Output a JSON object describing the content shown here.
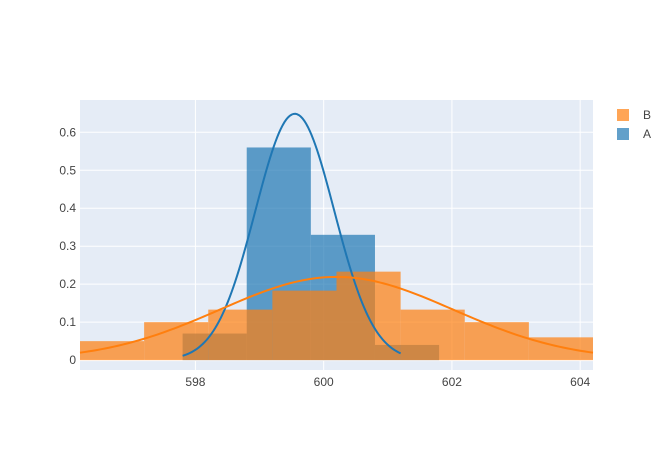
{
  "chart_data": {
    "type": "histogram",
    "title": "",
    "xlabel": "",
    "ylabel": "",
    "xlim": [
      596.2,
      604.2
    ],
    "ylim": [
      -0.026,
      0.685
    ],
    "x_ticks": [
      598,
      600,
      602,
      604
    ],
    "y_ticks": [
      0,
      0.1,
      0.2,
      0.3,
      0.4,
      0.5,
      0.6
    ],
    "x_tick_labels": [
      "598",
      "600",
      "602",
      "604"
    ],
    "y_tick_labels": [
      "0",
      "0.1",
      "0.2",
      "0.3",
      "0.4",
      "0.5",
      "0.6"
    ],
    "grid": true,
    "legend_position": "top-right",
    "background": "#e5ecf6",
    "series": [
      {
        "name": "A",
        "color": "#1f77b4",
        "opacity": 0.7,
        "bins": [
          {
            "x0": 597.8,
            "x1": 598.8,
            "y": 0.07
          },
          {
            "x0": 598.8,
            "x1": 599.8,
            "y": 0.56
          },
          {
            "x0": 599.8,
            "x1": 600.8,
            "y": 0.33
          },
          {
            "x0": 600.8,
            "x1": 601.8,
            "y": 0.04
          }
        ],
        "curve": {
          "type": "normal",
          "mean": 599.55,
          "sd": 0.615,
          "scale": 1.0,
          "x_range": [
            597.8,
            601.2
          ]
        }
      },
      {
        "name": "B",
        "color": "#ff7f0e",
        "opacity": 0.7,
        "bins": [
          {
            "x0": 596.2,
            "x1": 597.2,
            "y": 0.05
          },
          {
            "x0": 597.2,
            "x1": 598.2,
            "y": 0.1
          },
          {
            "x0": 598.2,
            "x1": 599.2,
            "y": 0.133
          },
          {
            "x0": 599.2,
            "x1": 600.2,
            "y": 0.183
          },
          {
            "x0": 600.2,
            "x1": 601.2,
            "y": 0.233
          },
          {
            "x0": 601.2,
            "x1": 602.2,
            "y": 0.133
          },
          {
            "x0": 602.2,
            "x1": 603.2,
            "y": 0.1
          },
          {
            "x0": 603.2,
            "x1": 604.2,
            "y": 0.06
          }
        ],
        "curve": {
          "type": "normal",
          "mean": 600.2,
          "sd": 1.82,
          "scale": 1.0,
          "x_range": [
            596.2,
            604.2
          ]
        }
      }
    ],
    "legend": [
      {
        "name": "B",
        "color": "#ff7f0e"
      },
      {
        "name": "A",
        "color": "#1f77b4"
      }
    ]
  }
}
